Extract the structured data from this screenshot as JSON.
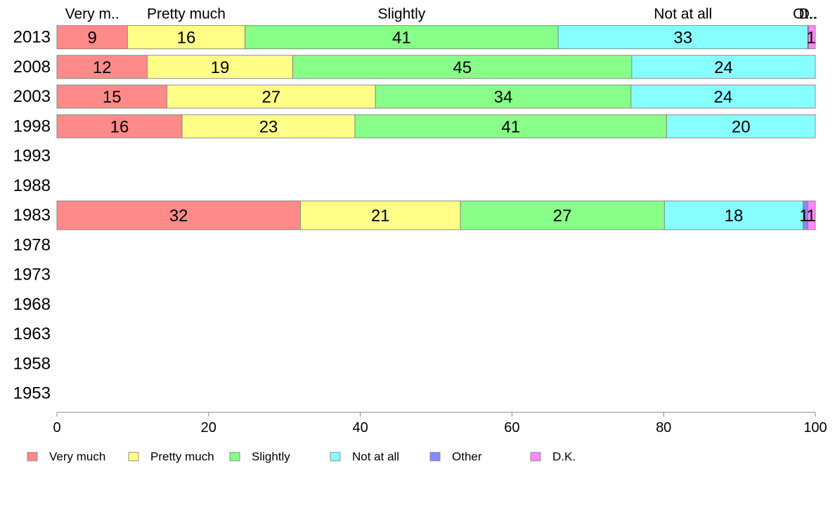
{
  "chart_data": {
    "type": "bar",
    "orientation": "horizontal",
    "stacked": true,
    "xlim": [
      0,
      100
    ],
    "xticks": [
      "0",
      "20",
      "40",
      "60",
      "80",
      "100"
    ],
    "categories": [
      "2013",
      "2008",
      "2003",
      "1998",
      "1993",
      "1988",
      "1983",
      "1978",
      "1973",
      "1968",
      "1963",
      "1958",
      "1953"
    ],
    "top_labels": [
      "Very m..",
      "Pretty much",
      "Slightly",
      "Not at all",
      "Ot..",
      "D.."
    ],
    "legend_position": "bottom",
    "series": [
      {
        "name": "Very much",
        "color": "#ff8a8a",
        "values": [
          9.3,
          11.9,
          14.5,
          16.5,
          null,
          null,
          32.1,
          null,
          null,
          null,
          null,
          null,
          null
        ],
        "labels": [
          "9",
          "12",
          "15",
          "16",
          "",
          "",
          "32",
          "",
          "",
          "",
          "",
          "",
          ""
        ]
      },
      {
        "name": "Pretty much",
        "color": "#ffff88",
        "values": [
          15.5,
          19.2,
          27.5,
          22.8,
          null,
          null,
          21.1,
          null,
          null,
          null,
          null,
          null,
          null
        ],
        "labels": [
          "16",
          "19",
          "27",
          "23",
          "",
          "",
          "21",
          "",
          "",
          "",
          "",
          "",
          ""
        ]
      },
      {
        "name": "Slightly",
        "color": "#88ff88",
        "values": [
          41.3,
          44.7,
          33.7,
          41.1,
          null,
          null,
          26.9,
          null,
          null,
          null,
          null,
          null,
          null
        ],
        "labels": [
          "41",
          "45",
          "34",
          "41",
          "",
          "",
          "27",
          "",
          "",
          "",
          "",
          "",
          ""
        ]
      },
      {
        "name": "Not at all",
        "color": "#88ffff",
        "values": [
          32.9,
          24.2,
          24.3,
          19.6,
          null,
          null,
          18.3,
          null,
          null,
          null,
          null,
          null,
          null
        ],
        "labels": [
          "33",
          "24",
          "24",
          "20",
          "",
          "",
          "18",
          "",
          "",
          "",
          "",
          "",
          ""
        ]
      },
      {
        "name": "Other",
        "color": "#8888ff",
        "values": [
          0.1,
          0,
          0,
          0,
          null,
          null,
          0.6,
          null,
          null,
          null,
          null,
          null,
          null
        ],
        "labels": [
          "",
          "",
          "",
          "",
          "",
          "",
          "1",
          "",
          "",
          "",
          "",
          "",
          ""
        ]
      },
      {
        "name": "D.K.",
        "color": "#ff88ff",
        "values": [
          0.9,
          0,
          0,
          0,
          null,
          null,
          1.0,
          null,
          null,
          null,
          null,
          null,
          null
        ],
        "labels": [
          "1",
          "",
          "",
          "",
          "",
          "",
          "1",
          "",
          "",
          "",
          "",
          "",
          ""
        ]
      }
    ]
  }
}
